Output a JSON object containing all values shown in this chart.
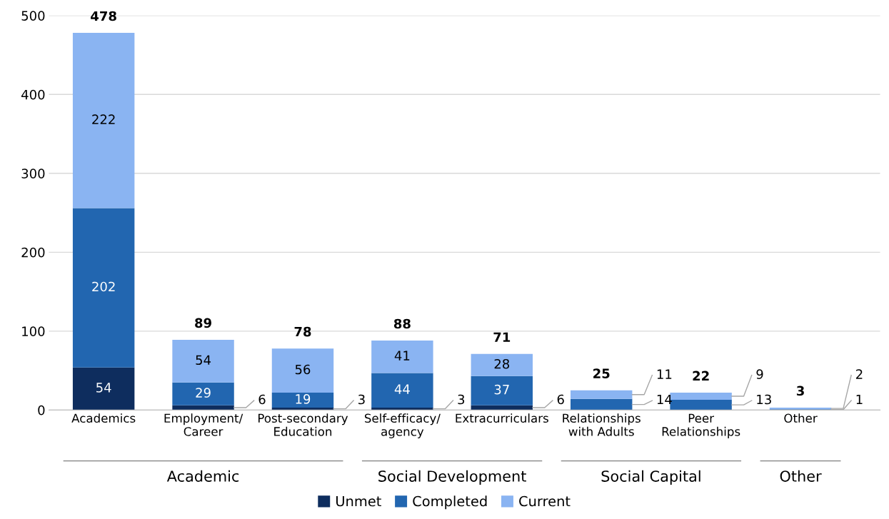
{
  "chart_data": {
    "type": "bar",
    "stacked": true,
    "categories": [
      "Academics",
      "Employment/\nCareer",
      "Post-secondary\nEducation",
      "Self-efficacy/\nagency",
      "Extracurriculars",
      "Relationships\nwith Adults",
      "Peer\nRelationships",
      "Other"
    ],
    "series": [
      {
        "name": "Unmet",
        "color": "#0e2d5e",
        "values": [
          54,
          6,
          3,
          3,
          6,
          0,
          0,
          0
        ],
        "value_labels": [
          "54",
          "6",
          "3",
          "3",
          "6",
          null,
          null,
          null
        ]
      },
      {
        "name": "Completed",
        "color": "#2266b0",
        "values": [
          202,
          29,
          19,
          44,
          37,
          14,
          13,
          1
        ],
        "value_labels": [
          "202",
          "29",
          "19",
          "44",
          "37",
          "14",
          "13",
          "1"
        ]
      },
      {
        "name": "Current",
        "color": "#8ab4f2",
        "values": [
          222,
          54,
          56,
          41,
          28,
          11,
          9,
          2
        ],
        "value_labels": [
          "222",
          "54",
          "56",
          "41",
          "28",
          "11",
          "9",
          "2"
        ]
      }
    ],
    "totals": [
      "478",
      "89",
      "78",
      "88",
      "71",
      "25",
      "22",
      "3"
    ],
    "annotations": [
      "Academic",
      "Social Development",
      "Social Capital",
      "Other"
    ],
    "ylim": [
      0,
      500
    ],
    "yticks": [
      0,
      100,
      200,
      300,
      400,
      500
    ],
    "grid": "y",
    "legend": "bottom"
  }
}
